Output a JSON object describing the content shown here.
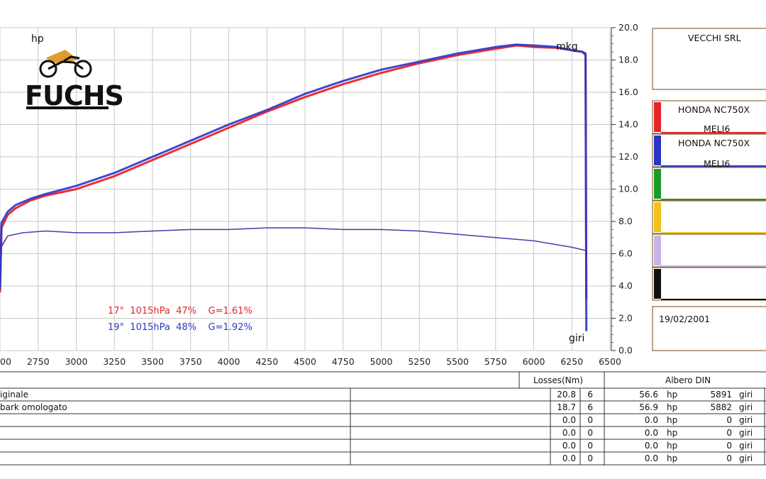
{
  "chart_data": {
    "type": "line",
    "brand": "FUCHS",
    "left_unit": "hp",
    "right_unit": "mkg",
    "x_unit": "giri",
    "xlim": [
      2500,
      6500
    ],
    "x_ticks": [
      "00",
      "2750",
      "3000",
      "3250",
      "3500",
      "3750",
      "4000",
      "4250",
      "4500",
      "4750",
      "5000",
      "5250",
      "5500",
      "5750",
      "6000",
      "6250",
      "6500"
    ],
    "ylim_right": [
      0,
      20
    ],
    "y_ticks_right": [
      "0.0",
      "2.0",
      "4.0",
      "6.0",
      "8.0",
      "10.0",
      "12.0",
      "14.0",
      "16.0",
      "18.0",
      "20.0"
    ],
    "series": [
      {
        "name": "HONDA NC750X",
        "sub": "MELI6",
        "color": "#e8232a",
        "condition": "17°  1015hPa  47%    G=1.61%",
        "power": [
          [
            2500,
            3.6
          ],
          [
            2510,
            7.6
          ],
          [
            2550,
            8.4
          ],
          [
            2600,
            8.8
          ],
          [
            2700,
            9.3
          ],
          [
            2800,
            9.6
          ],
          [
            3000,
            10.0
          ],
          [
            3250,
            10.8
          ],
          [
            3500,
            11.8
          ],
          [
            3750,
            12.8
          ],
          [
            4000,
            13.8
          ],
          [
            4250,
            14.8
          ],
          [
            4500,
            15.7
          ],
          [
            4750,
            16.5
          ],
          [
            5000,
            17.2
          ],
          [
            5250,
            17.8
          ],
          [
            5500,
            18.3
          ],
          [
            5750,
            18.7
          ],
          [
            5891,
            18.9
          ],
          [
            6000,
            18.8
          ],
          [
            6150,
            18.75
          ],
          [
            6250,
            18.6
          ],
          [
            6320,
            18.5
          ],
          [
            6340,
            18.3
          ],
          [
            6345,
            3.2
          ]
        ],
        "torque": [
          [
            2500,
            3.6
          ],
          [
            2510,
            6.4
          ],
          [
            2550,
            7.1
          ],
          [
            2650,
            7.3
          ],
          [
            2800,
            7.4
          ],
          [
            3000,
            7.3
          ],
          [
            3250,
            7.3
          ],
          [
            3500,
            7.4
          ],
          [
            3750,
            7.5
          ],
          [
            4000,
            7.5
          ],
          [
            4250,
            7.6
          ],
          [
            4500,
            7.6
          ],
          [
            4750,
            7.5
          ],
          [
            5000,
            7.5
          ],
          [
            5250,
            7.4
          ],
          [
            5500,
            7.2
          ],
          [
            5750,
            7.0
          ],
          [
            6000,
            6.8
          ],
          [
            6250,
            6.4
          ],
          [
            6340,
            6.2
          ]
        ]
      },
      {
        "name": "HONDA NC750X",
        "sub": "MELI6",
        "color": "#2a35c8",
        "condition": "19°  1015hPa  48%    G=1.92%",
        "power": [
          [
            2500,
            3.8
          ],
          [
            2510,
            7.9
          ],
          [
            2550,
            8.6
          ],
          [
            2600,
            9.0
          ],
          [
            2700,
            9.4
          ],
          [
            2800,
            9.7
          ],
          [
            3000,
            10.2
          ],
          [
            3250,
            11.0
          ],
          [
            3500,
            12.0
          ],
          [
            3750,
            13.0
          ],
          [
            4000,
            14.0
          ],
          [
            4250,
            14.9
          ],
          [
            4500,
            15.9
          ],
          [
            4750,
            16.7
          ],
          [
            5000,
            17.4
          ],
          [
            5250,
            17.9
          ],
          [
            5500,
            18.4
          ],
          [
            5750,
            18.8
          ],
          [
            5882,
            18.95
          ],
          [
            6000,
            18.9
          ],
          [
            6150,
            18.8
          ],
          [
            6250,
            18.6
          ],
          [
            6320,
            18.5
          ],
          [
            6340,
            18.4
          ],
          [
            6345,
            1.2
          ]
        ],
        "torque": [
          [
            2500,
            3.8
          ],
          [
            2510,
            6.5
          ],
          [
            2550,
            7.1
          ],
          [
            2650,
            7.3
          ],
          [
            2800,
            7.4
          ],
          [
            3000,
            7.3
          ],
          [
            3250,
            7.3
          ],
          [
            3500,
            7.4
          ],
          [
            3750,
            7.5
          ],
          [
            4000,
            7.5
          ],
          [
            4250,
            7.6
          ],
          [
            4500,
            7.6
          ],
          [
            4750,
            7.5
          ],
          [
            5000,
            7.5
          ],
          [
            5250,
            7.4
          ],
          [
            5500,
            7.2
          ],
          [
            5750,
            7.0
          ],
          [
            6000,
            6.8
          ],
          [
            6250,
            6.4
          ],
          [
            6340,
            6.2
          ]
        ]
      }
    ],
    "legend_header": "VECCHI SRL",
    "legend_slot_colors": [
      "#e8232a",
      "#2a35c8",
      "#1a9a2a",
      "#f2c218",
      "#c9b3e6",
      "#111111"
    ],
    "date": "19/02/2001",
    "table": {
      "losses_header": "Losses(Nm)",
      "albero_header": "Albero DIN",
      "power_unit": "hp",
      "rpm_unit": "giri",
      "rows": [
        {
          "name": "iginale",
          "loss": "20.8",
          "loss_n": "6",
          "hp": "56.6",
          "rpm": "5891"
        },
        {
          "name": "bark omologato",
          "loss": "18.7",
          "loss_n": "6",
          "hp": "56.9",
          "rpm": "5882"
        },
        {
          "name": "",
          "loss": "0.0",
          "loss_n": "0",
          "hp": "0.0",
          "rpm": "0"
        },
        {
          "name": "",
          "loss": "0.0",
          "loss_n": "0",
          "hp": "0.0",
          "rpm": "0"
        },
        {
          "name": "",
          "loss": "0.0",
          "loss_n": "0",
          "hp": "0.0",
          "rpm": "0"
        },
        {
          "name": "",
          "loss": "0.0",
          "loss_n": "0",
          "hp": "0.0",
          "rpm": "0"
        }
      ]
    }
  }
}
